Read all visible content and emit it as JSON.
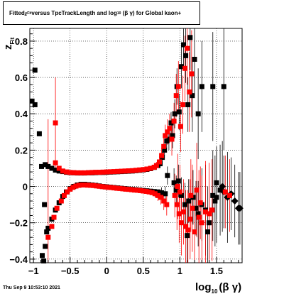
{
  "title": {
    "prefix": "Fitted ",
    "z_symbol": "z",
    "z_sub": "Fit",
    "middle": "  versus TpcTrackLength and log",
    "log_sub": "10",
    "suffix": "(β γ) for Global kaon+"
  },
  "timestamp": "Thu Sep  9 10:53:10 2021",
  "chart_data": {
    "type": "scatter",
    "xlabel": "log10(β γ)",
    "xlabel_main": "log",
    "xlabel_sub": "10",
    "xlabel_tail": "(β γ)",
    "ylabel": "zFit",
    "ylabel_main": "z",
    "ylabel_sub": "Fit",
    "xlim": [
      -1.05,
      1.85
    ],
    "ylim": [
      -0.42,
      0.87
    ],
    "x_ticks": [
      {
        "value": -1,
        "label": "−1"
      },
      {
        "value": -0.5,
        "label": "−0.5"
      },
      {
        "value": 0,
        "label": "0"
      },
      {
        "value": 0.5,
        "label": "0.5"
      },
      {
        "value": 1,
        "label": "1"
      },
      {
        "value": 1.5,
        "label": "1.5"
      }
    ],
    "y_ticks": [
      {
        "value": -0.4,
        "label": "−0.4"
      },
      {
        "value": -0.2,
        "label": "−0.2"
      },
      {
        "value": 0,
        "label": "0"
      },
      {
        "value": 0.2,
        "label": "0.2"
      },
      {
        "value": 0.4,
        "label": "0.4"
      },
      {
        "value": 0.6,
        "label": "0.6"
      },
      {
        "value": 0.8,
        "label": "0.8"
      }
    ],
    "grid": true,
    "colors": {
      "black": "#000000",
      "red": "#ff0000"
    },
    "series": [
      {
        "color": "#000000",
        "marker": "square",
        "points": [
          [
            -0.98,
            0.64,
            0
          ],
          [
            -1.02,
            0.47,
            0
          ],
          [
            -0.98,
            0.45,
            0
          ],
          [
            -0.92,
            0.29,
            0
          ],
          [
            -0.89,
            0.11,
            0
          ],
          [
            -0.84,
            0.12,
            0
          ],
          [
            -0.8,
            0.11,
            0
          ],
          [
            -0.75,
            0.1,
            0
          ],
          [
            -0.7,
            0.09,
            0
          ],
          [
            -0.65,
            0.085,
            0
          ],
          [
            -0.6,
            0.082,
            0
          ],
          [
            -0.55,
            0.078,
            0
          ],
          [
            -0.5,
            0.076,
            0
          ],
          [
            -0.45,
            0.075,
            0
          ],
          [
            -0.4,
            0.074,
            0
          ],
          [
            -0.35,
            0.074,
            0
          ],
          [
            -0.3,
            0.074,
            0
          ],
          [
            -0.25,
            0.075,
            0
          ],
          [
            -0.2,
            0.075,
            0
          ],
          [
            -0.15,
            0.076,
            0
          ],
          [
            -0.1,
            0.077,
            0
          ],
          [
            -0.05,
            0.077,
            0
          ],
          [
            0.0,
            0.078,
            0
          ],
          [
            0.05,
            0.079,
            0
          ],
          [
            0.1,
            0.08,
            0
          ],
          [
            0.15,
            0.081,
            0
          ],
          [
            0.2,
            0.082,
            0
          ],
          [
            0.25,
            0.083,
            0
          ],
          [
            0.3,
            0.084,
            0
          ],
          [
            0.35,
            0.085,
            0
          ],
          [
            0.4,
            0.087,
            0
          ],
          [
            0.45,
            0.089,
            0
          ],
          [
            0.5,
            0.091,
            0
          ],
          [
            0.55,
            0.094,
            0
          ],
          [
            0.6,
            0.098,
            0
          ],
          [
            0.65,
            0.105,
            0
          ],
          [
            0.7,
            0.115,
            0
          ],
          [
            0.73,
            0.125,
            0.02
          ],
          [
            0.76,
            0.16,
            0.03
          ],
          [
            0.79,
            0.2,
            0.03
          ],
          [
            0.82,
            0.25,
            0.04
          ],
          [
            -0.85,
            -0.1,
            0
          ],
          [
            -0.82,
            -0.25,
            0
          ],
          [
            -0.86,
            -0.41,
            0
          ],
          [
            -0.88,
            -0.38,
            0
          ],
          [
            -0.84,
            -0.33,
            0
          ],
          [
            -0.8,
            -0.23,
            0
          ],
          [
            -0.75,
            -0.18,
            0
          ],
          [
            -0.7,
            -0.13,
            0
          ],
          [
            -0.65,
            -0.09,
            0
          ],
          [
            -0.6,
            -0.055,
            0
          ],
          [
            -0.55,
            -0.03,
            0
          ],
          [
            -0.5,
            -0.012,
            0
          ],
          [
            -0.45,
            0.0,
            0
          ],
          [
            -0.4,
            0.008,
            0
          ],
          [
            -0.35,
            0.012,
            0
          ],
          [
            -0.3,
            0.012,
            0
          ],
          [
            -0.25,
            0.01,
            0
          ],
          [
            -0.2,
            0.008,
            0
          ],
          [
            -0.15,
            0.006,
            0
          ],
          [
            -0.1,
            0.003,
            0
          ],
          [
            -0.05,
            0.0,
            0
          ],
          [
            0.0,
            -0.002,
            0
          ],
          [
            0.05,
            -0.004,
            0
          ],
          [
            0.1,
            -0.006,
            0
          ],
          [
            0.15,
            -0.008,
            0
          ],
          [
            0.2,
            -0.01,
            0
          ],
          [
            0.25,
            -0.012,
            0
          ],
          [
            0.3,
            -0.014,
            0
          ],
          [
            0.35,
            -0.016,
            0
          ],
          [
            0.4,
            -0.018,
            0
          ],
          [
            0.45,
            -0.02,
            0
          ],
          [
            0.5,
            -0.022,
            0
          ],
          [
            0.55,
            -0.024,
            0
          ],
          [
            0.6,
            -0.026,
            0
          ],
          [
            0.65,
            -0.028,
            0
          ],
          [
            0.7,
            -0.03,
            0
          ],
          [
            0.75,
            -0.035,
            0.03
          ],
          [
            0.8,
            -0.04,
            0.04
          ],
          [
            0.83,
            0.06,
            0.05
          ],
          [
            0.85,
            0.26,
            0.06
          ],
          [
            0.88,
            0.35,
            0.06
          ],
          [
            0.9,
            0.28,
            0.07
          ],
          [
            0.93,
            0.4,
            0.08
          ],
          [
            0.96,
            0.55,
            0.1
          ],
          [
            0.99,
            0.41,
            0.1
          ],
          [
            1.02,
            0.66,
            0.12
          ],
          [
            1.05,
            0.78,
            0.12
          ],
          [
            1.08,
            0.72,
            0.15
          ],
          [
            1.11,
            0.45,
            0.15
          ],
          [
            1.14,
            0.82,
            0.18
          ],
          [
            1.17,
            0.5,
            0.2
          ],
          [
            1.2,
            0.7,
            0.2
          ],
          [
            1.25,
            0.4,
            0.25
          ],
          [
            1.3,
            0.55,
            0.25
          ],
          [
            1.45,
            0.55,
            0.3
          ],
          [
            1.6,
            0.55,
            0.35
          ],
          [
            0.92,
            0.02,
            0.08
          ],
          [
            0.95,
            -0.02,
            0.08
          ],
          [
            0.98,
            0.03,
            0.09
          ],
          [
            1.02,
            -0.05,
            0.1
          ],
          [
            1.07,
            -0.1,
            0.12
          ],
          [
            1.12,
            -0.08,
            0.12
          ],
          [
            1.18,
            -0.06,
            0.15
          ],
          [
            1.22,
            -0.12,
            0.15
          ],
          [
            1.25,
            -0.15,
            0.18
          ],
          [
            1.3,
            -0.1,
            0.2
          ],
          [
            1.4,
            -0.2,
            0.2
          ],
          [
            1.45,
            -0.05,
            0.25
          ],
          [
            1.5,
            -0.06,
            0.25
          ],
          [
            1.55,
            -0.02,
            0.25
          ],
          [
            1.58,
            0.0,
            0.25
          ],
          [
            1.65,
            -0.06,
            0.25
          ],
          [
            1.7,
            -0.04,
            0.2
          ],
          [
            1.75,
            -0.08,
            0.2
          ],
          [
            1.8,
            -0.12,
            0.2
          ],
          [
            1.82,
            -0.12,
            0.2
          ],
          [
            1.6,
            -0.03,
            0.2
          ],
          [
            1.5,
            0.02,
            0.2
          ],
          [
            1.48,
            -0.08,
            0.25
          ],
          [
            1.35,
            -0.13,
            0.25
          ],
          [
            1.38,
            -0.25,
            0.25
          ],
          [
            1.1,
            -0.27,
            0.2
          ]
        ]
      },
      {
        "color": "#ff0000",
        "marker": "square",
        "points": [
          [
            -0.7,
            0.35,
            0.25
          ],
          [
            -0.8,
            -0.28,
            0.65
          ],
          [
            -0.75,
            -0.22,
            0
          ],
          [
            -0.72,
            -0.17,
            0
          ],
          [
            -0.68,
            -0.12,
            0
          ],
          [
            -0.62,
            -0.08,
            0
          ],
          [
            -0.58,
            -0.05,
            0
          ],
          [
            -0.54,
            -0.03,
            0
          ],
          [
            -0.5,
            -0.015,
            0
          ],
          [
            -0.46,
            -0.005,
            0
          ],
          [
            -0.42,
            0.002,
            0
          ],
          [
            -0.38,
            0.006,
            0
          ],
          [
            -0.34,
            0.008,
            0
          ],
          [
            -0.3,
            0.008,
            0
          ],
          [
            -0.26,
            0.007,
            0
          ],
          [
            -0.22,
            0.006,
            0
          ],
          [
            -0.18,
            0.005,
            0
          ],
          [
            -0.14,
            0.003,
            0
          ],
          [
            -0.1,
            0.001,
            0
          ],
          [
            -0.06,
            -0.001,
            0
          ],
          [
            -0.02,
            -0.003,
            0
          ],
          [
            0.02,
            -0.005,
            0
          ],
          [
            0.06,
            -0.006,
            0
          ],
          [
            0.1,
            -0.008,
            0
          ],
          [
            0.14,
            -0.01,
            0
          ],
          [
            0.18,
            -0.011,
            0
          ],
          [
            0.22,
            -0.013,
            0
          ],
          [
            0.26,
            -0.015,
            0
          ],
          [
            0.3,
            -0.016,
            0
          ],
          [
            0.34,
            -0.018,
            0
          ],
          [
            0.38,
            -0.02,
            0
          ],
          [
            0.42,
            -0.021,
            0
          ],
          [
            0.46,
            -0.023,
            0
          ],
          [
            0.5,
            -0.025,
            0
          ],
          [
            0.54,
            -0.027,
            0
          ],
          [
            0.58,
            -0.03,
            0
          ],
          [
            0.62,
            -0.034,
            0
          ],
          [
            0.66,
            -0.04,
            0.02
          ],
          [
            0.7,
            -0.05,
            0.03
          ],
          [
            0.74,
            -0.06,
            0.04
          ],
          [
            0.78,
            -0.08,
            0.05
          ],
          [
            0.82,
            -0.1,
            0.06
          ],
          [
            -0.7,
            0.13,
            0
          ],
          [
            -0.65,
            0.1,
            0
          ],
          [
            -0.6,
            0.085,
            0
          ],
          [
            -0.55,
            0.08,
            0
          ],
          [
            -0.5,
            0.077,
            0
          ],
          [
            -0.45,
            0.076,
            0
          ],
          [
            -0.4,
            0.075,
            0
          ],
          [
            -0.35,
            0.075,
            0
          ],
          [
            -0.3,
            0.075,
            0
          ],
          [
            -0.25,
            0.076,
            0
          ],
          [
            -0.2,
            0.077,
            0
          ],
          [
            -0.15,
            0.078,
            0
          ],
          [
            -0.1,
            0.078,
            0
          ],
          [
            -0.05,
            0.079,
            0
          ],
          [
            0.0,
            0.08,
            0
          ],
          [
            0.05,
            0.081,
            0
          ],
          [
            0.1,
            0.082,
            0
          ],
          [
            0.15,
            0.083,
            0
          ],
          [
            0.2,
            0.084,
            0
          ],
          [
            0.25,
            0.085,
            0
          ],
          [
            0.3,
            0.086,
            0
          ],
          [
            0.35,
            0.087,
            0
          ],
          [
            0.4,
            0.089,
            0
          ],
          [
            0.45,
            0.091,
            0
          ],
          [
            0.5,
            0.093,
            0
          ],
          [
            0.55,
            0.096,
            0
          ],
          [
            0.6,
            0.1,
            0
          ],
          [
            0.65,
            0.106,
            0
          ],
          [
            0.68,
            0.115,
            0.02
          ],
          [
            0.72,
            0.135,
            0.03
          ],
          [
            0.75,
            0.17,
            0.04
          ],
          [
            0.78,
            0.22,
            0.05
          ],
          [
            0.8,
            0.28,
            0.06
          ],
          [
            0.83,
            0.3,
            0.07
          ],
          [
            0.86,
            0.32,
            0.08
          ],
          [
            0.89,
            0.26,
            0.09
          ],
          [
            0.92,
            0.36,
            0.1
          ],
          [
            0.95,
            0.5,
            0.12
          ],
          [
            0.98,
            0.55,
            0.14
          ],
          [
            1.01,
            0.33,
            0.14
          ],
          [
            1.04,
            0.45,
            0.16
          ],
          [
            1.07,
            0.65,
            0.18
          ],
          [
            1.1,
            0.76,
            0.2
          ],
          [
            1.13,
            0.52,
            0.22
          ],
          [
            1.16,
            0.62,
            0.24
          ],
          [
            0.93,
            -0.05,
            0.12
          ],
          [
            0.96,
            -0.1,
            0.14
          ],
          [
            0.99,
            -0.15,
            0.16
          ],
          [
            1.02,
            -0.2,
            0.18
          ],
          [
            1.05,
            -0.14,
            0.18
          ],
          [
            1.08,
            -0.22,
            0.2
          ],
          [
            1.11,
            -0.24,
            0.22
          ],
          [
            1.14,
            -0.18,
            0.22
          ],
          [
            1.17,
            -0.12,
            0.24
          ],
          [
            1.2,
            -0.25,
            0.24
          ],
          [
            1.23,
            -0.02,
            0.26
          ],
          [
            1.26,
            -0.17,
            0.26
          ],
          [
            1.3,
            -0.2,
            0.26
          ],
          [
            1.35,
            -0.14,
            0.28
          ],
          [
            1.4,
            -0.15,
            0.28
          ],
          [
            1.44,
            -0.13,
            0.28
          ],
          [
            1.62,
            -0.03,
            0.2
          ],
          [
            1.68,
            -0.05,
            0.2
          ],
          [
            1.0,
            -0.03,
            0.15
          ],
          [
            1.28,
            -0.09,
            0.2
          ],
          [
            1.15,
            -0.05,
            0.2
          ],
          [
            0.97,
            0.0,
            0.18
          ]
        ]
      }
    ]
  }
}
